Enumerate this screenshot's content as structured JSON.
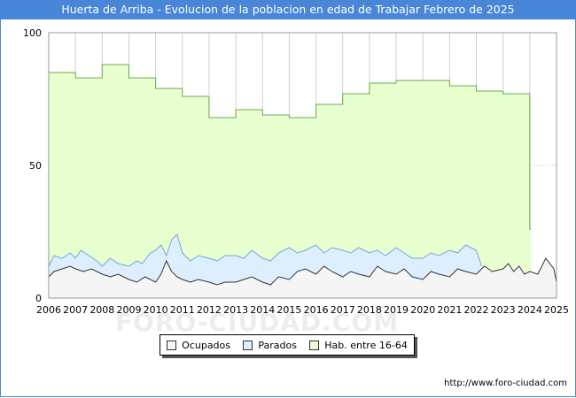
{
  "header": {
    "title": "Huerta de Arriba - Evolucion de la poblacion en edad de Trabajar Febrero de 2025"
  },
  "footer": {
    "url": "http://www.foro-ciudad.com"
  },
  "watermark": {
    "text": "FORO-CIUDAD.COM"
  },
  "chart_data": {
    "type": "area",
    "title": "Huerta de Arriba - Evolucion de la poblacion en edad de Trabajar Febrero de 2025",
    "xlabel": "",
    "ylabel": "",
    "xlim": [
      2006,
      2025
    ],
    "ylim": [
      0,
      100
    ],
    "x_ticks": [
      "2006",
      "2007",
      "2008",
      "2009",
      "2010",
      "2011",
      "2012",
      "2013",
      "2014",
      "2015",
      "2016",
      "2017",
      "2018",
      "2019",
      "2020",
      "2021",
      "2022",
      "2023",
      "2024",
      "2025"
    ],
    "y_ticks": [
      "0",
      "50",
      "100"
    ],
    "grid": true,
    "legend_position": "bottom",
    "series": [
      {
        "name": "Hab. entre 16-64",
        "style": "step",
        "color": "#e8ffd0",
        "stroke": "#6aa84f",
        "x": [
          2006,
          2007,
          2008,
          2009,
          2010,
          2011,
          2012,
          2013,
          2014,
          2015,
          2016,
          2017,
          2018,
          2019,
          2020,
          2021,
          2022,
          2023,
          2024.0,
          2024.05
        ],
        "values": [
          85,
          83,
          88,
          83,
          79,
          76,
          68,
          71,
          69,
          68,
          73,
          77,
          81,
          82,
          82,
          80,
          78,
          77,
          26,
          26
        ]
      },
      {
        "name": "Parados",
        "style": "line",
        "color": "#ddeeff",
        "stroke": "#6fa8dc",
        "x": [
          2006,
          2006.2,
          2006.5,
          2006.8,
          2007,
          2007.2,
          2007.5,
          2007.8,
          2008,
          2008.3,
          2008.6,
          2009,
          2009.3,
          2009.5,
          2009.8,
          2010,
          2010.2,
          2010.4,
          2010.6,
          2010.8,
          2011,
          2011.3,
          2011.6,
          2012,
          2012.3,
          2012.6,
          2013,
          2013.3,
          2013.6,
          2014,
          2014.3,
          2014.6,
          2015,
          2015.3,
          2015.6,
          2016,
          2016.3,
          2016.6,
          2017,
          2017.3,
          2017.6,
          2018,
          2018.3,
          2018.6,
          2019,
          2019.3,
          2019.6,
          2020,
          2020.3,
          2020.6,
          2021,
          2021.3,
          2021.6,
          2022,
          2022.2
        ],
        "values": [
          12,
          16,
          15,
          17,
          15,
          18,
          16,
          14,
          12,
          15,
          13,
          12,
          14,
          13,
          17,
          18,
          20,
          16,
          22,
          24,
          17,
          14,
          16,
          15,
          14,
          16,
          16,
          15,
          18,
          15,
          14,
          17,
          19,
          17,
          18,
          20,
          17,
          19,
          18,
          17,
          19,
          17,
          18,
          16,
          19,
          17,
          15,
          15,
          17,
          16,
          18,
          17,
          20,
          18,
          12
        ]
      },
      {
        "name": "Ocupados",
        "style": "line",
        "color": "#f5f5f5",
        "stroke": "#333333",
        "x": [
          2006,
          2006.2,
          2006.5,
          2006.8,
          2007,
          2007.3,
          2007.6,
          2008,
          2008.3,
          2008.6,
          2009,
          2009.3,
          2009.6,
          2010,
          2010.2,
          2010.4,
          2010.6,
          2010.8,
          2011,
          2011.3,
          2011.6,
          2012,
          2012.3,
          2012.6,
          2013,
          2013.3,
          2013.6,
          2014,
          2014.3,
          2014.6,
          2015,
          2015.3,
          2015.6,
          2016,
          2016.3,
          2016.6,
          2017,
          2017.3,
          2017.6,
          2018,
          2018.3,
          2018.6,
          2019,
          2019.3,
          2019.6,
          2020,
          2020.3,
          2020.6,
          2021,
          2021.3,
          2021.6,
          2022,
          2022.3,
          2022.6,
          2023,
          2023.2,
          2023.4,
          2023.6,
          2023.8,
          2024,
          2024.3,
          2024.6,
          2024.9,
          2025
        ],
        "values": [
          8,
          10,
          11,
          12,
          11,
          10,
          11,
          9,
          8,
          9,
          7,
          6,
          8,
          6,
          9,
          14,
          10,
          8,
          7,
          6,
          7,
          6,
          5,
          6,
          6,
          7,
          8,
          6,
          5,
          8,
          7,
          10,
          11,
          9,
          12,
          10,
          8,
          10,
          9,
          8,
          12,
          10,
          9,
          11,
          8,
          7,
          10,
          9,
          8,
          11,
          10,
          9,
          12,
          10,
          11,
          13,
          10,
          12,
          9,
          10,
          9,
          15,
          11,
          6
        ]
      }
    ]
  }
}
